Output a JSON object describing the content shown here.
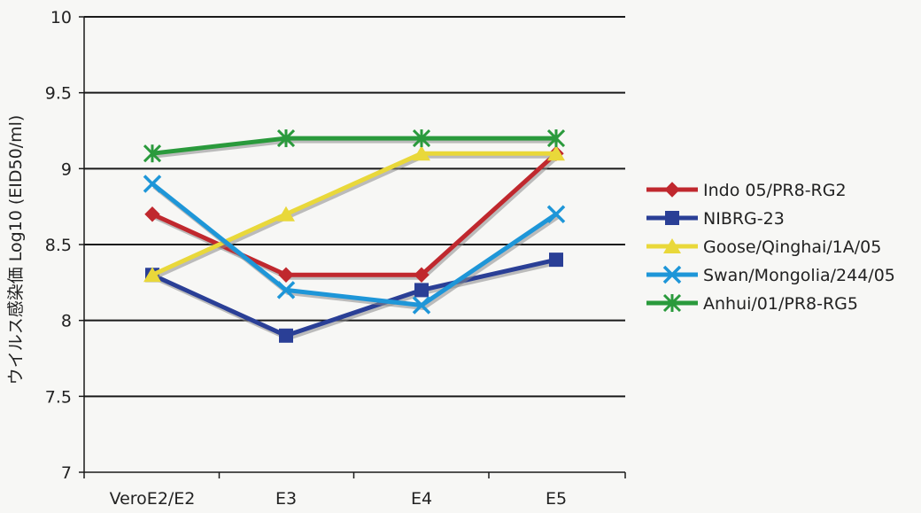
{
  "chart_data": {
    "type": "line",
    "title": "",
    "xlabel": "",
    "ylabel": "ウイルス感染価 Log10 (EID50/ml)",
    "categories": [
      "VeroE2/E2",
      "E3",
      "E4",
      "E5"
    ],
    "ylim": [
      7,
      10
    ],
    "yticks": [
      "7",
      "7.5",
      "8",
      "8.5",
      "9",
      "9.5",
      "10"
    ],
    "grid": true,
    "legend_position": "right",
    "series": [
      {
        "name": "Indo 05/PR8-RG2",
        "values": [
          8.7,
          8.3,
          8.3,
          9.1
        ],
        "color": "#c0282e",
        "marker": "diamond"
      },
      {
        "name": "NIBRG-23",
        "values": [
          8.3,
          7.9,
          8.2,
          8.4
        ],
        "color": "#2a3f96",
        "marker": "square"
      },
      {
        "name": "Goose/Qinghai/1A/05",
        "values": [
          8.3,
          8.7,
          9.1,
          9.1
        ],
        "color": "#e9d83a",
        "marker": "triangle"
      },
      {
        "name": "Swan/Mongolia/244/05",
        "values": [
          8.9,
          8.2,
          8.1,
          8.7
        ],
        "color": "#1e96d8",
        "marker": "x"
      },
      {
        "name": "Anhui/01/PR8-RG5",
        "values": [
          9.1,
          9.2,
          9.2,
          9.2
        ],
        "color": "#2a9a3c",
        "marker": "star"
      }
    ]
  }
}
